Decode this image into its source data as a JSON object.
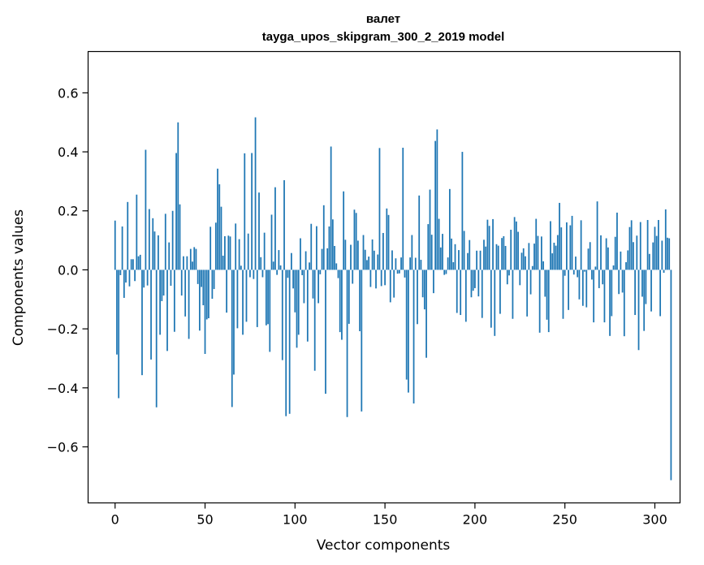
{
  "chart_data": {
    "type": "bar",
    "title": "валет",
    "subtitle": "tayga_upos_skipgram_300_2_2019 model",
    "xlabel": "Vector components",
    "ylabel": "Components values",
    "xlim": [
      -15,
      314
    ],
    "ylim": [
      -0.79,
      0.74
    ],
    "x_ticks": [
      0,
      50,
      100,
      150,
      200,
      250,
      300
    ],
    "x_tick_labels": [
      "0",
      "50",
      "100",
      "150",
      "200",
      "250",
      "300"
    ],
    "y_ticks": [
      -0.6,
      -0.4,
      -0.2,
      0.0,
      0.2,
      0.4,
      0.6
    ],
    "y_tick_labels": [
      "−0.6",
      "−0.4",
      "−0.2",
      "0.0",
      "0.2",
      "0.4",
      "0.6"
    ],
    "grid": false,
    "bar_color": "#1f77b4",
    "values": [
      0.167,
      -0.287,
      -0.435,
      -0.018,
      0.147,
      -0.095,
      -0.043,
      0.23,
      -0.056,
      0.036,
      0.036,
      -0.038,
      0.255,
      0.046,
      0.051,
      -0.357,
      -0.06,
      0.407,
      -0.053,
      0.206,
      -0.304,
      0.175,
      0.13,
      -0.466,
      0.117,
      -0.22,
      -0.106,
      -0.087,
      0.19,
      -0.275,
      0.093,
      -0.054,
      0.2,
      -0.21,
      0.396,
      0.5,
      0.222,
      -0.087,
      0.046,
      -0.158,
      0.046,
      -0.234,
      0.071,
      0.028,
      0.077,
      0.071,
      -0.048,
      -0.206,
      -0.058,
      -0.12,
      -0.285,
      -0.168,
      -0.164,
      0.146,
      -0.098,
      -0.065,
      0.16,
      0.343,
      0.29,
      0.214,
      0.048,
      0.114,
      -0.145,
      0.116,
      0.113,
      -0.465,
      -0.355,
      0.157,
      -0.198,
      0.104,
      0.014,
      -0.22,
      0.395,
      -0.176,
      0.123,
      -0.025,
      0.396,
      -0.031,
      0.517,
      -0.194,
      0.262,
      0.043,
      -0.025,
      0.126,
      -0.188,
      -0.184,
      -0.278,
      0.187,
      0.028,
      0.28,
      -0.017,
      0.067,
      0.015,
      -0.306,
      0.304,
      -0.496,
      -0.027,
      -0.488,
      0.057,
      -0.063,
      -0.144,
      -0.264,
      -0.22,
      0.107,
      -0.018,
      -0.113,
      0.063,
      -0.243,
      0.025,
      0.156,
      -0.097,
      -0.342,
      0.148,
      -0.113,
      -0.015,
      0.071,
      0.219,
      -0.42,
      0.073,
      0.147,
      0.418,
      0.171,
      0.081,
      0.022,
      -0.028,
      -0.211,
      -0.237,
      0.266,
      0.102,
      -0.499,
      -0.183,
      0.085,
      -0.047,
      0.204,
      0.193,
      0.099,
      -0.208,
      -0.48,
      0.118,
      0.068,
      0.033,
      0.045,
      -0.058,
      0.103,
      0.065,
      -0.063,
      0.052,
      0.413,
      -0.055,
      0.125,
      -0.052,
      0.208,
      0.186,
      -0.11,
      0.066,
      -0.094,
      0.039,
      -0.013,
      -0.012,
      0.042,
      0.414,
      -0.026,
      -0.372,
      -0.416,
      0.042,
      0.118,
      -0.453,
      0.041,
      -0.184,
      0.252,
      0.034,
      -0.093,
      -0.134,
      -0.298,
      0.155,
      0.272,
      0.119,
      -0.079,
      0.437,
      0.476,
      0.173,
      0.076,
      0.122,
      -0.017,
      -0.014,
      0.042,
      0.274,
      0.106,
      0.026,
      0.087,
      -0.146,
      0.067,
      -0.153,
      0.4,
      0.132,
      -0.176,
      0.057,
      0.101,
      -0.093,
      -0.071,
      -0.062,
      0.065,
      -0.09,
      0.065,
      -0.163,
      0.102,
      0.079,
      0.17,
      0.149,
      -0.196,
      0.172,
      -0.224,
      0.087,
      0.082,
      -0.149,
      0.108,
      0.114,
      0.081,
      -0.049,
      -0.019,
      0.136,
      -0.166,
      0.179,
      0.164,
      0.129,
      -0.052,
      0.058,
      0.073,
      0.046,
      -0.158,
      0.091,
      -0.083,
      0.013,
      0.089,
      0.173,
      0.115,
      -0.213,
      0.113,
      0.029,
      -0.091,
      -0.169,
      -0.211,
      0.165,
      0.056,
      0.092,
      0.082,
      0.118,
      0.227,
      0.144,
      -0.166,
      -0.02,
      0.161,
      -0.136,
      0.151,
      0.183,
      -0.016,
      0.045,
      -0.025,
      -0.1,
      0.168,
      -0.122,
      -0.006,
      -0.127,
      0.072,
      0.094,
      -0.033,
      -0.178,
      0.011,
      0.232,
      -0.062,
      0.117,
      -0.049,
      -0.178,
      0.107,
      0.076,
      -0.224,
      -0.157,
      0.015,
      0.112,
      0.194,
      -0.082,
      0.062,
      -0.077,
      -0.225,
      0.026,
      0.066,
      0.145,
      0.168,
      0.094,
      -0.153,
      0.116,
      -0.272,
      0.162,
      -0.091,
      -0.207,
      -0.116,
      0.169,
      0.054,
      -0.141,
      0.093,
      0.146,
      0.115,
      0.169,
      -0.157,
      0.099,
      -0.01,
      0.205,
      0.109,
      0.107,
      -0.713
    ]
  }
}
